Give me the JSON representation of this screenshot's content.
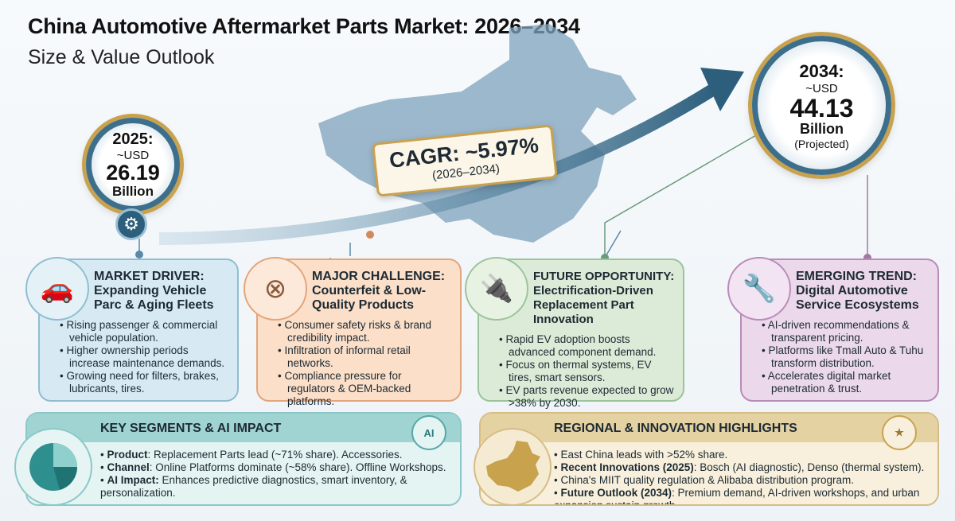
{
  "header": {
    "title": "China Automotive Aftermarket Parts Market: 2026–2034",
    "subtitle": "Size & Value Outlook"
  },
  "start": {
    "year": "2025:",
    "currency": "~USD",
    "value": "26.19",
    "unit": "Billion",
    "icon": "gear-car-icon"
  },
  "end": {
    "year": "2034:",
    "currency": "~USD",
    "value": "44.13",
    "unit": "Billion",
    "note": "(Projected)"
  },
  "cagr": {
    "label": "CAGR: ~5.97%",
    "period": "(2026–2034)"
  },
  "colors": {
    "driver": "#d7eaf3",
    "challenge": "#fbdfc9",
    "opportunity": "#dcebd7",
    "trend": "#ebd8eb",
    "segments": "#9fd4d2",
    "regional": "#e5d2a3",
    "arrow": "#2d5f7d",
    "accent_gold": "#c9a24e"
  },
  "cards": [
    {
      "title": "MARKET DRIVER:",
      "subtitle": "Expanding Vehicle Parc & Aging Fleets",
      "icon": "cars-wrench-icon",
      "bullets": [
        "Rising passenger & commercial vehicle population.",
        "Higher ownership periods increase maintenance demands.",
        "Growing need for filters, brakes, lubricants, tires."
      ]
    },
    {
      "title": "MAJOR CHALLENGE:",
      "subtitle": "Counterfeit & Low-Quality Products",
      "icon": "counterfeit-part-icon",
      "bullets": [
        "Consumer safety risks & brand credibility impact.",
        "Infiltration of informal retail networks.",
        "Compliance pressure for regulators & OEM-backed platforms."
      ]
    },
    {
      "title": "FUTURE OPPORTUNITY:",
      "subtitle": "Electrification-Driven Replacement Part Innovation",
      "icon": "ev-car-icon",
      "bullets": [
        "Rapid EV adoption boosts advanced component demand.",
        "Focus on thermal systems, EV tires, smart sensors.",
        "EV parts revenue expected to grow >38% by 2030."
      ]
    },
    {
      "title": "EMERGING TREND:",
      "subtitle": "Digital Automotive Service Ecosystems",
      "icon": "tablet-wrench-icon",
      "bullets": [
        "AI-driven recommendations & transparent pricing.",
        "Platforms like Tmall Auto & Tuhu transform distribution.",
        "Accelerates digital market penetration & trust."
      ]
    }
  ],
  "segments": {
    "title": "KEY SEGMENTS & AI IMPACT",
    "icon_label": "AI",
    "items": [
      {
        "label": "Product",
        "text": ": Replacement Parts lead (~71% share). Accessories."
      },
      {
        "label": "Channel",
        "text": ": Online Platforms dominate (~58% share). Offline Workshops."
      },
      {
        "label": "AI Impact:",
        "text": " Enhances predictive diagnostics, smart inventory, & personalization."
      }
    ]
  },
  "regional": {
    "title": "REGIONAL & INNOVATION HIGHLIGHTS",
    "items": [
      {
        "label": "",
        "text": "East China leads with >52% share."
      },
      {
        "label": "Recent Innovations (2025)",
        "text": ": Bosch (AI diagnostic), Denso (thermal system)."
      },
      {
        "label": "",
        "text": "China's MIIT quality regulation & Alibaba distribution program."
      },
      {
        "label": "Future Outlook (2034)",
        "text": ": Premium demand, AI-driven workshops, and urban expansion sustain growth."
      }
    ]
  }
}
